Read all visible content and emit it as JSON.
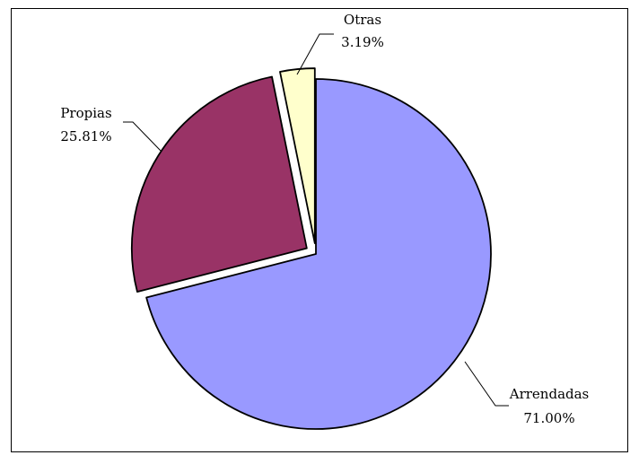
{
  "chart_data": {
    "type": "pie",
    "title": "",
    "slices": [
      {
        "label": "Arrendadas",
        "value": 71.0,
        "value_label": "71.00%",
        "color": "#9999ff",
        "exploded": false
      },
      {
        "label": "Propias",
        "value": 25.81,
        "value_label": "25.81%",
        "color": "#993366",
        "exploded": true
      },
      {
        "label": "Otras",
        "value": 3.19,
        "value_label": "3.19%",
        "color": "#ffffcc",
        "exploded": true
      }
    ],
    "start_angle": "12 o'clock",
    "direction": "clockwise",
    "legend": "none",
    "data_labels": "outside with leader lines",
    "border": true
  }
}
